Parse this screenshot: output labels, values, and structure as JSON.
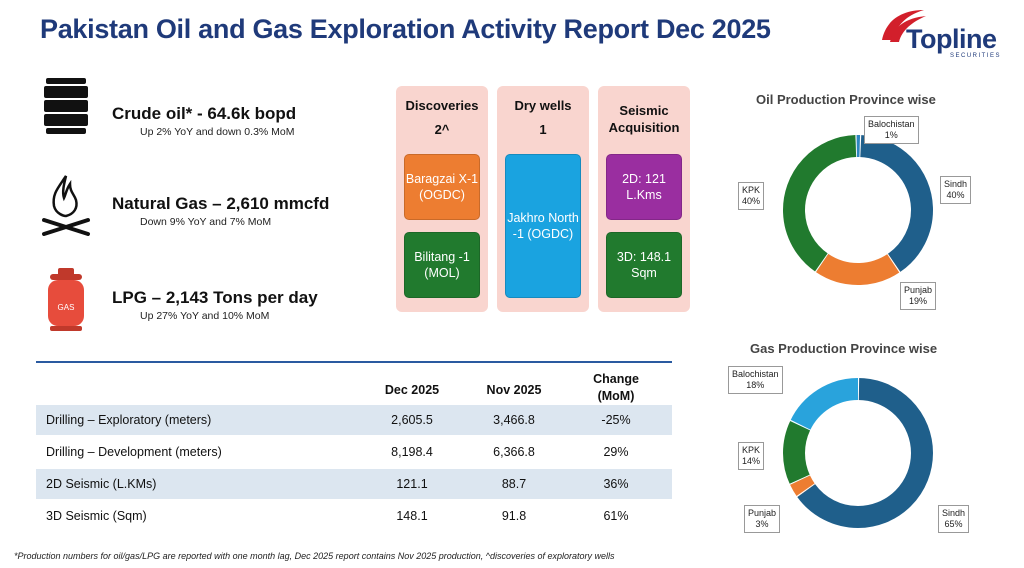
{
  "title": "Pakistan Oil and Gas Exploration Activity Report Dec 2025",
  "logo": {
    "name": "Topline",
    "sub": "SECURITIES"
  },
  "production": {
    "crude": {
      "headline": "Crude oil* - 64.6k bopd",
      "detail": "Up 2% YoY and down 0.3% MoM"
    },
    "gas": {
      "headline": "Natural Gas – 2,610 mmcfd",
      "detail": "Down 9% YoY and 7% MoM"
    },
    "lpg": {
      "headline": "LPG – 2,143 Tons per day",
      "detail": "Up 27% YoY and 10% MoM"
    }
  },
  "activity": {
    "discoveries": {
      "title": "Discoveries",
      "count": "2^",
      "items": [
        "Baragzai X-1 (OGDC)",
        "Bilitang -1 (MOL)"
      ]
    },
    "dry_wells": {
      "title": "Dry wells",
      "count": "1",
      "items": [
        "Jakhro North -1 (OGDC)"
      ]
    },
    "seismic": {
      "title": "Seismic Acquisition",
      "items": [
        "2D: 121 L.Kms",
        "3D: 148.1 Sqm"
      ]
    }
  },
  "table": {
    "headers": [
      "",
      "Dec 2025",
      "Nov 2025",
      "Change (MoM)"
    ],
    "rows": [
      [
        "Drilling – Exploratory (meters)",
        "2,605.5",
        "3,466.8",
        "-25%"
      ],
      [
        "Drilling – Development (meters)",
        "8,198.4",
        "6,366.8",
        "29%"
      ],
      [
        "2D Seismic (L.KMs)",
        "121.1",
        "88.7",
        "36%"
      ],
      [
        "3D Seismic (Sqm)",
        "148.1",
        "91.8",
        "61%"
      ]
    ]
  },
  "footnote": "*Production numbers for oil/gas/LPG are reported with one month lag, Dec 2025 report contains Nov 2025 production, ^discoveries of exploratory wells",
  "chart_data": [
    {
      "type": "pie",
      "title": "Oil Production Province wise",
      "categories": [
        "Balochistan",
        "Sindh",
        "Punjab",
        "KPK"
      ],
      "values": [
        1,
        40,
        19,
        40
      ],
      "labels": [
        "1%",
        "40%",
        "19%",
        "40%"
      ],
      "colors": [
        "#2e86c1",
        "#1f5f8b",
        "#ed7d31",
        "#217a2e"
      ]
    },
    {
      "type": "pie",
      "title": "Gas Production Province wise",
      "categories": [
        "Sindh",
        "Punjab",
        "KPK",
        "Balochistan"
      ],
      "values": [
        65,
        3,
        14,
        18
      ],
      "labels": [
        "65%",
        "3%",
        "14%",
        "18%"
      ],
      "colors": [
        "#1f5f8b",
        "#ed7d31",
        "#217a2e",
        "#29a3dc"
      ]
    }
  ]
}
